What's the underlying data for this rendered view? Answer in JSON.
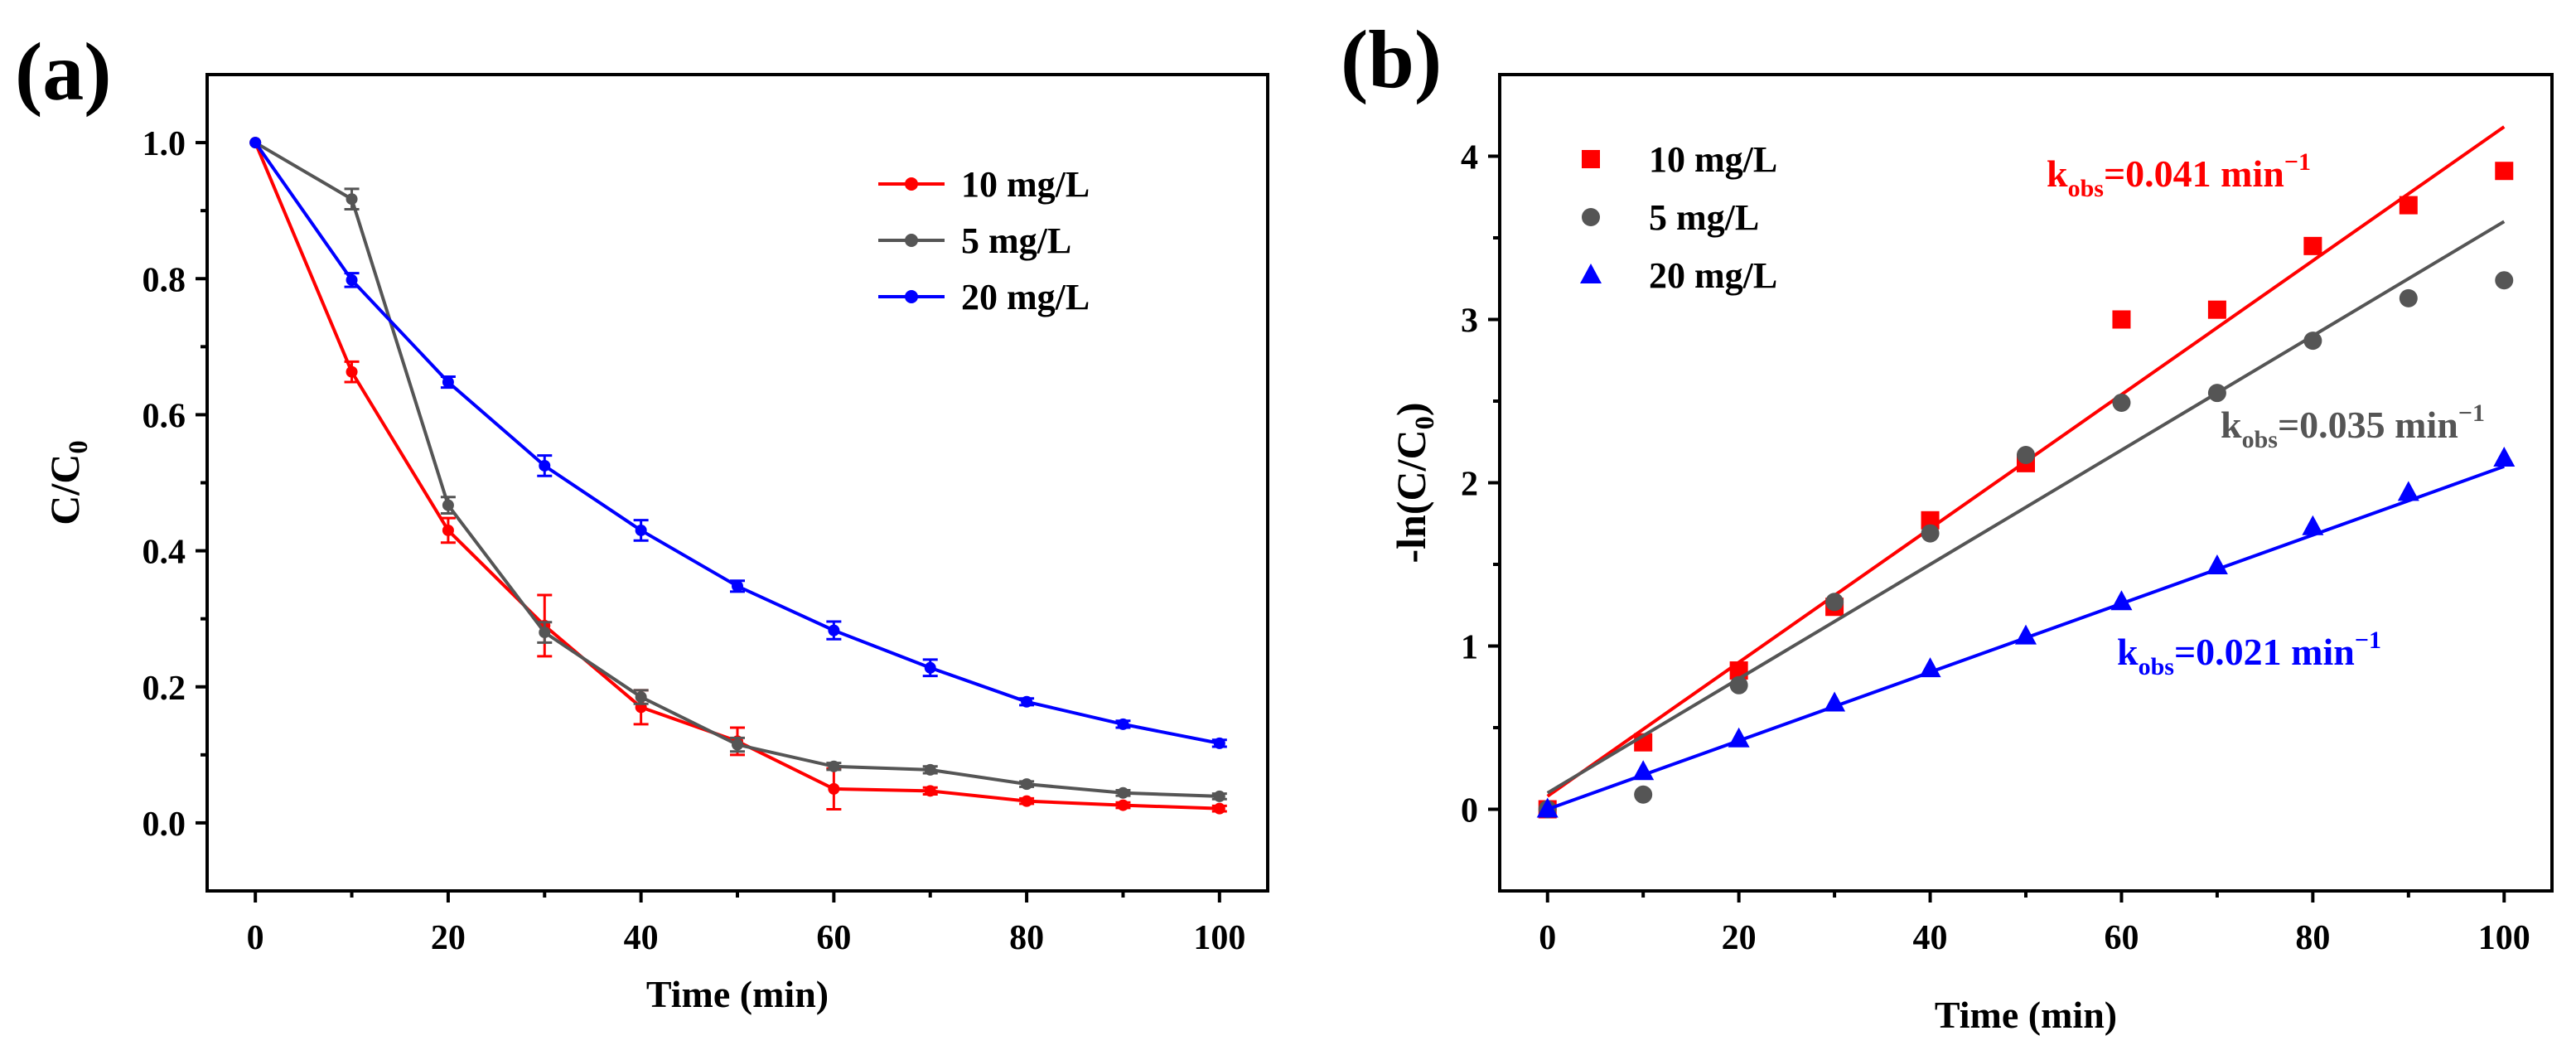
{
  "panels": {
    "a": {
      "label": "(a)"
    },
    "b": {
      "label": "(b)"
    }
  },
  "chart_data": [
    {
      "id": "a",
      "type": "line",
      "title": "",
      "xlabel": "Time (min)",
      "ylabel": {
        "main": "C/C",
        "sub": "0"
      },
      "xlim": [
        -5,
        105
      ],
      "ylim": [
        -0.1,
        1.1
      ],
      "xticks": [
        0,
        20,
        40,
        60,
        80,
        100
      ],
      "xticklabels": [
        "0",
        "20",
        "40",
        "60",
        "80",
        "100"
      ],
      "yticks": [
        0,
        0.2,
        0.4,
        0.6,
        0.8,
        1.0
      ],
      "yticklabels": [
        "0.0",
        "0.2",
        "0.4",
        "0.6",
        "0.8",
        "1.0"
      ],
      "grid": false,
      "legend_position": "top-right",
      "x": [
        0,
        10,
        20,
        30,
        40,
        50,
        60,
        70,
        80,
        90,
        100
      ],
      "series": [
        {
          "name": "10 mg/L",
          "color": "#ff0000",
          "marker": "circle",
          "values": [
            1.0,
            0.663,
            0.43,
            0.29,
            0.17,
            0.12,
            0.05,
            0.047,
            0.032,
            0.026,
            0.021
          ],
          "errors": [
            0,
            0.015,
            0.018,
            0.045,
            0.025,
            0.02,
            0.03,
            0.005,
            0.004,
            0.004,
            0.004
          ]
        },
        {
          "name": "5 mg/L",
          "color": "#555555",
          "marker": "circle",
          "values": [
            1.0,
            0.917,
            0.467,
            0.28,
            0.185,
            0.115,
            0.083,
            0.078,
            0.057,
            0.044,
            0.039
          ],
          "errors": [
            0,
            0.015,
            0.012,
            0.015,
            0.01,
            0.01,
            0.005,
            0.005,
            0.004,
            0.004,
            0.004
          ]
        },
        {
          "name": "20 mg/L",
          "color": "#0000ff",
          "marker": "circle",
          "values": [
            1.0,
            0.798,
            0.648,
            0.525,
            0.43,
            0.348,
            0.283,
            0.228,
            0.178,
            0.145,
            0.117
          ],
          "errors": [
            0,
            0.01,
            0.008,
            0.015,
            0.015,
            0.008,
            0.013,
            0.012,
            0.005,
            0.005,
            0.005
          ]
        }
      ]
    },
    {
      "id": "b",
      "type": "scatter",
      "title": "",
      "xlabel": "Time (min)",
      "ylabel": {
        "main": "-ln(C/C",
        "sub": "0",
        "close": ")"
      },
      "xlim": [
        -5,
        105
      ],
      "ylim": [
        -0.5,
        4.5
      ],
      "xticks": [
        0,
        20,
        40,
        60,
        80,
        100
      ],
      "xticklabels": [
        "0",
        "20",
        "40",
        "60",
        "80",
        "100"
      ],
      "yticks": [
        0,
        1,
        2,
        3,
        4
      ],
      "yticklabels": [
        "0",
        "1",
        "2",
        "3",
        "4"
      ],
      "grid": false,
      "legend_position": "top-left",
      "x": [
        0,
        10,
        20,
        30,
        40,
        50,
        60,
        70,
        80,
        90,
        100
      ],
      "series": [
        {
          "name": "10 mg/L",
          "color": "#ff0000",
          "marker": "square",
          "values": [
            0,
            0.41,
            0.85,
            1.24,
            1.77,
            2.12,
            3.0,
            3.06,
            3.45,
            3.7,
            3.91
          ],
          "fit": {
            "slope": 0.041,
            "intercept": 0.08
          },
          "annotation": {
            "k": "k",
            "sub": "obs",
            "rest": "=0.041 min",
            "sup": "−1"
          }
        },
        {
          "name": "5 mg/L",
          "color": "#555555",
          "marker": "circle",
          "values": [
            0,
            0.09,
            0.76,
            1.27,
            1.69,
            2.17,
            2.49,
            2.55,
            2.87,
            3.13,
            3.24
          ],
          "fit": {
            "slope": 0.035,
            "intercept": 0.1
          },
          "annotation": {
            "k": "k",
            "sub": "obs",
            "rest": "=0.035 min",
            "sup": "−1"
          }
        },
        {
          "name": "20 mg/L",
          "color": "#0000ff",
          "marker": "triangle",
          "values": [
            0,
            0.23,
            0.43,
            0.65,
            0.86,
            1.06,
            1.27,
            1.49,
            1.73,
            1.94,
            2.15
          ],
          "fit": {
            "slope": 0.021,
            "intercept": 0.0
          },
          "annotation": {
            "k": "k",
            "sub": "obs",
            "rest": "=0.021 min",
            "sup": "−1"
          }
        }
      ]
    }
  ]
}
